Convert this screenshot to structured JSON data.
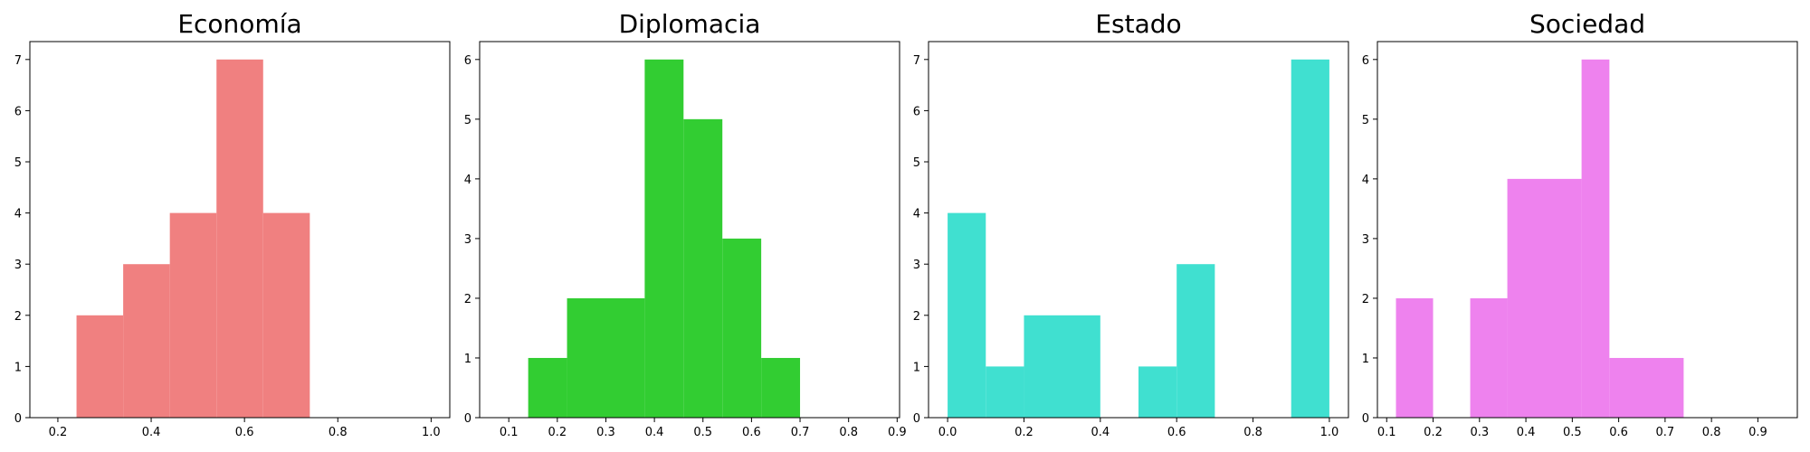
{
  "chart_data": [
    {
      "type": "bar",
      "title": "Economía",
      "xlabel": "",
      "ylabel": "",
      "color": "#f08080",
      "xlim": [
        0.14,
        1.04
      ],
      "ylim": [
        0,
        7.35
      ],
      "xticks": [
        0.2,
        0.4,
        0.6,
        0.8,
        1.0
      ],
      "xtick_labels": [
        "0.2",
        "0.4",
        "0.6",
        "0.8",
        "1.0"
      ],
      "yticks": [
        0,
        1,
        2,
        3,
        4,
        5,
        6,
        7
      ],
      "bins": [
        {
          "start": 0.24,
          "end": 0.34,
          "count": 2
        },
        {
          "start": 0.34,
          "end": 0.44,
          "count": 3
        },
        {
          "start": 0.44,
          "end": 0.54,
          "count": 4
        },
        {
          "start": 0.54,
          "end": 0.64,
          "count": 7
        },
        {
          "start": 0.64,
          "end": 0.74,
          "count": 4
        }
      ]
    },
    {
      "type": "bar",
      "title": "Diplomacia",
      "xlabel": "",
      "ylabel": "",
      "color": "#32cd32",
      "xlim": [
        0.04,
        0.905
      ],
      "ylim": [
        0,
        6.3
      ],
      "xticks": [
        0.1,
        0.2,
        0.3,
        0.4,
        0.5,
        0.6,
        0.7,
        0.8,
        0.9
      ],
      "xtick_labels": [
        "0.1",
        "0.2",
        "0.3",
        "0.4",
        "0.5",
        "0.6",
        "0.7",
        "0.8",
        "0.9"
      ],
      "yticks": [
        0,
        1,
        2,
        3,
        4,
        5,
        6
      ],
      "bins": [
        {
          "start": 0.14,
          "end": 0.22,
          "count": 1
        },
        {
          "start": 0.22,
          "end": 0.38,
          "count": 2
        },
        {
          "start": 0.38,
          "end": 0.46,
          "count": 6
        },
        {
          "start": 0.46,
          "end": 0.54,
          "count": 5
        },
        {
          "start": 0.54,
          "end": 0.62,
          "count": 3
        },
        {
          "start": 0.62,
          "end": 0.7,
          "count": 1
        }
      ]
    },
    {
      "type": "bar",
      "title": "Estado",
      "xlabel": "",
      "ylabel": "",
      "color": "#40e0d0",
      "xlim": [
        -0.05,
        1.05
      ],
      "ylim": [
        0,
        7.35
      ],
      "xticks": [
        0.0,
        0.2,
        0.4,
        0.6,
        0.8,
        1.0
      ],
      "xtick_labels": [
        "0.0",
        "0.2",
        "0.4",
        "0.6",
        "0.8",
        "1.0"
      ],
      "yticks": [
        0,
        1,
        2,
        3,
        4,
        5,
        6,
        7
      ],
      "bins": [
        {
          "start": 0.0,
          "end": 0.1,
          "count": 4
        },
        {
          "start": 0.1,
          "end": 0.2,
          "count": 1
        },
        {
          "start": 0.2,
          "end": 0.4,
          "count": 2
        },
        {
          "start": 0.5,
          "end": 0.6,
          "count": 1
        },
        {
          "start": 0.6,
          "end": 0.7,
          "count": 3
        },
        {
          "start": 0.9,
          "end": 1.0,
          "count": 7
        }
      ]
    },
    {
      "type": "bar",
      "title": "Sociedad",
      "xlabel": "",
      "ylabel": "",
      "color": "#ee82ee",
      "xlim": [
        0.08,
        0.985
      ],
      "ylim": [
        0,
        6.3
      ],
      "xticks": [
        0.1,
        0.2,
        0.3,
        0.4,
        0.5,
        0.6,
        0.7,
        0.8,
        0.9
      ],
      "xtick_labels": [
        "0.1",
        "0.2",
        "0.3",
        "0.4",
        "0.5",
        "0.6",
        "0.7",
        "0.8",
        "0.9"
      ],
      "yticks": [
        0,
        1,
        2,
        3,
        4,
        5,
        6
      ],
      "bins": [
        {
          "start": 0.12,
          "end": 0.2,
          "count": 2
        },
        {
          "start": 0.28,
          "end": 0.36,
          "count": 2
        },
        {
          "start": 0.36,
          "end": 0.52,
          "count": 4
        },
        {
          "start": 0.52,
          "end": 0.58,
          "count": 6
        },
        {
          "start": 0.58,
          "end": 0.74,
          "count": 1
        }
      ]
    }
  ]
}
